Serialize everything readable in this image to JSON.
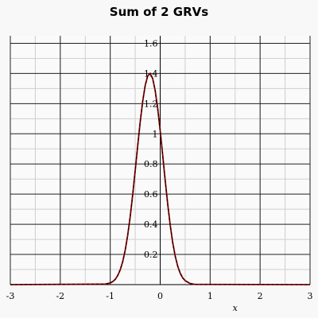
{
  "chart_data": {
    "type": "line",
    "title": "Sum of 2 GRVs",
    "xlabel": "x",
    "ylabel": "",
    "xlim": [
      -3,
      3
    ],
    "ylim": [
      0,
      1.65
    ],
    "x_ticks": [
      -3,
      -2,
      -1,
      0,
      1,
      2,
      3
    ],
    "y_ticks": [
      0.2,
      0.4,
      0.6,
      0.8,
      1,
      1.2,
      1.4,
      1.6
    ],
    "grid": true,
    "legend": "none",
    "series": [
      {
        "color": "#8b0000",
        "style": "solid",
        "x": [
          -1.1,
          -1.0,
          -0.95,
          -0.9,
          -0.85,
          -0.8,
          -0.75,
          -0.7,
          -0.65,
          -0.6,
          -0.55,
          -0.5,
          -0.45,
          -0.4,
          -0.35,
          -0.3,
          -0.25,
          -0.2,
          -0.15,
          -0.1,
          -0.05,
          0.0,
          0.05,
          0.1,
          0.15,
          0.2,
          0.25,
          0.3,
          0.35,
          0.4,
          0.45,
          0.5,
          0.6,
          0.7
        ],
        "y": [
          0.003,
          0.011,
          0.02,
          0.035,
          0.06,
          0.098,
          0.153,
          0.229,
          0.329,
          0.452,
          0.597,
          0.757,
          0.921,
          1.079,
          1.216,
          1.321,
          1.384,
          1.4,
          1.366,
          1.286,
          1.168,
          1.021,
          0.858,
          0.692,
          0.535,
          0.396,
          0.28,
          0.19,
          0.123,
          0.076,
          0.045,
          0.026,
          0.007,
          0.0015
        ]
      },
      {
        "color": "#000000",
        "style": "dashed",
        "x": [
          -1.1,
          -1.0,
          -0.95,
          -0.9,
          -0.85,
          -0.8,
          -0.75,
          -0.7,
          -0.65,
          -0.6,
          -0.55,
          -0.5,
          -0.45,
          -0.4,
          -0.35,
          -0.3,
          -0.25,
          -0.2,
          -0.15,
          -0.1,
          -0.05,
          0.0,
          0.05,
          0.1,
          0.15,
          0.2,
          0.25,
          0.3,
          0.35,
          0.4,
          0.45,
          0.5,
          0.6,
          0.7
        ],
        "y": [
          0.003,
          0.011,
          0.02,
          0.035,
          0.06,
          0.098,
          0.153,
          0.229,
          0.329,
          0.452,
          0.597,
          0.757,
          0.921,
          1.079,
          1.216,
          1.321,
          1.384,
          1.4,
          1.366,
          1.286,
          1.168,
          1.021,
          0.858,
          0.692,
          0.535,
          0.396,
          0.28,
          0.19,
          0.123,
          0.076,
          0.045,
          0.026,
          0.007,
          0.0015
        ]
      }
    ]
  }
}
